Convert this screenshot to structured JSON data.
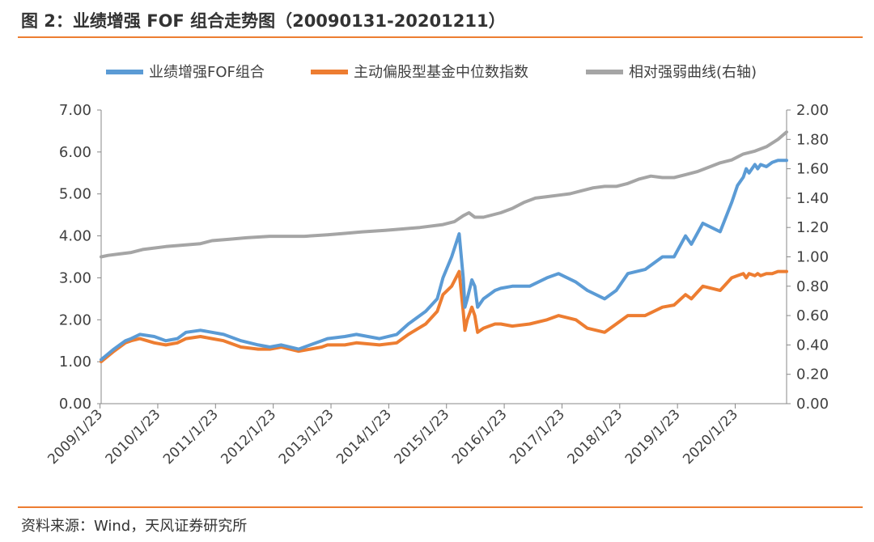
{
  "header": {
    "title": "图 2：业绩增强 FOF 组合走势图（20090131-20201211）"
  },
  "footer": {
    "source": "资料来源：Wind，天风证券研究所"
  },
  "colors": {
    "accent": "#ED7D31",
    "series_blue": "#5B9BD5",
    "series_orange": "#ED7D31",
    "series_gray": "#A5A5A5"
  },
  "chart_data": {
    "type": "line",
    "legend_position": "top",
    "grid": false,
    "x_ticks": [
      "2009/1/23",
      "2010/1/23",
      "2011/1/23",
      "2012/1/23",
      "2013/1/23",
      "2014/1/23",
      "2015/1/23",
      "2016/1/23",
      "2017/1/23",
      "2018/1/23",
      "2019/1/23",
      "2020/1/23"
    ],
    "x_range": [
      2009.08,
      2020.95
    ],
    "y_left": {
      "range": [
        0,
        7
      ],
      "ticks": [
        "0.00",
        "1.00",
        "2.00",
        "3.00",
        "4.00",
        "5.00",
        "6.00",
        "7.00"
      ]
    },
    "y_right": {
      "range": [
        0,
        2
      ],
      "ticks": [
        "0.00",
        "0.20",
        "0.40",
        "0.60",
        "0.80",
        "1.00",
        "1.20",
        "1.40",
        "1.60",
        "1.80",
        "2.00"
      ]
    },
    "series": [
      {
        "name": "业绩增强FOF组合",
        "axis": "left",
        "color": "#5B9BD5",
        "x": [
          2009.08,
          2009.3,
          2009.5,
          2009.6,
          2009.75,
          2010.0,
          2010.2,
          2010.4,
          2010.55,
          2010.8,
          2011.0,
          2011.2,
          2011.5,
          2011.8,
          2012.0,
          2012.2,
          2012.5,
          2012.7,
          2012.9,
          2013.0,
          2013.3,
          2013.5,
          2013.9,
          2014.2,
          2014.4,
          2014.7,
          2014.9,
          2015.0,
          2015.15,
          2015.28,
          2015.35,
          2015.38,
          2015.42,
          2015.5,
          2015.55,
          2015.6,
          2015.7,
          2015.8,
          2015.9,
          2016.0,
          2016.2,
          2016.5,
          2016.8,
          2017.0,
          2017.3,
          2017.5,
          2017.8,
          2018.0,
          2018.2,
          2018.5,
          2018.8,
          2019.0,
          2019.2,
          2019.3,
          2019.5,
          2019.8,
          2020.0,
          2020.1,
          2020.2,
          2020.25,
          2020.3,
          2020.4,
          2020.45,
          2020.5,
          2020.6,
          2020.7,
          2020.8,
          2020.95
        ],
        "values": [
          1.05,
          1.3,
          1.5,
          1.55,
          1.65,
          1.6,
          1.5,
          1.55,
          1.7,
          1.75,
          1.7,
          1.65,
          1.5,
          1.4,
          1.35,
          1.4,
          1.3,
          1.4,
          1.5,
          1.55,
          1.6,
          1.65,
          1.55,
          1.65,
          1.9,
          2.2,
          2.5,
          3.0,
          3.5,
          4.05,
          3.0,
          2.3,
          2.5,
          2.95,
          2.8,
          2.3,
          2.5,
          2.6,
          2.7,
          2.75,
          2.8,
          2.8,
          3.0,
          3.1,
          2.9,
          2.7,
          2.5,
          2.7,
          3.1,
          3.2,
          3.5,
          3.5,
          4.0,
          3.8,
          4.3,
          4.1,
          4.8,
          5.2,
          5.4,
          5.6,
          5.5,
          5.7,
          5.6,
          5.7,
          5.65,
          5.75,
          5.8,
          5.8
        ]
      },
      {
        "name": "主动偏股型基金中位数指数",
        "axis": "left",
        "color": "#ED7D31",
        "x": [
          2009.08,
          2009.3,
          2009.5,
          2009.6,
          2009.75,
          2010.0,
          2010.2,
          2010.4,
          2010.55,
          2010.8,
          2011.0,
          2011.2,
          2011.5,
          2011.8,
          2012.0,
          2012.2,
          2012.5,
          2012.7,
          2012.9,
          2013.0,
          2013.3,
          2013.5,
          2013.9,
          2014.2,
          2014.4,
          2014.7,
          2014.9,
          2015.0,
          2015.15,
          2015.28,
          2015.35,
          2015.38,
          2015.42,
          2015.5,
          2015.55,
          2015.6,
          2015.7,
          2015.8,
          2015.9,
          2016.0,
          2016.2,
          2016.5,
          2016.8,
          2017.0,
          2017.3,
          2017.5,
          2017.8,
          2018.0,
          2018.2,
          2018.5,
          2018.8,
          2019.0,
          2019.2,
          2019.3,
          2019.5,
          2019.8,
          2020.0,
          2020.1,
          2020.2,
          2020.25,
          2020.3,
          2020.4,
          2020.45,
          2020.5,
          2020.6,
          2020.7,
          2020.8,
          2020.95
        ],
        "values": [
          1.0,
          1.25,
          1.45,
          1.5,
          1.55,
          1.45,
          1.4,
          1.45,
          1.55,
          1.6,
          1.55,
          1.5,
          1.35,
          1.3,
          1.3,
          1.35,
          1.25,
          1.3,
          1.35,
          1.4,
          1.4,
          1.45,
          1.4,
          1.45,
          1.65,
          1.9,
          2.2,
          2.6,
          2.8,
          3.15,
          2.2,
          1.75,
          2.0,
          2.3,
          2.1,
          1.7,
          1.8,
          1.85,
          1.9,
          1.9,
          1.85,
          1.9,
          2.0,
          2.1,
          2.0,
          1.8,
          1.7,
          1.9,
          2.1,
          2.1,
          2.3,
          2.35,
          2.6,
          2.5,
          2.8,
          2.7,
          3.0,
          3.05,
          3.1,
          3.0,
          3.1,
          3.05,
          3.1,
          3.05,
          3.1,
          3.1,
          3.15,
          3.15
        ]
      },
      {
        "name": "相对强弱曲线(右轴)",
        "axis": "right",
        "color": "#A5A5A5",
        "x": [
          2009.08,
          2009.2,
          2009.4,
          2009.6,
          2009.8,
          2010.0,
          2010.2,
          2010.5,
          2010.8,
          2011.0,
          2011.3,
          2011.6,
          2012.0,
          2012.3,
          2012.6,
          2013.0,
          2013.3,
          2013.6,
          2014.0,
          2014.3,
          2014.6,
          2015.0,
          2015.2,
          2015.35,
          2015.45,
          2015.55,
          2015.7,
          2016.0,
          2016.2,
          2016.4,
          2016.6,
          2016.8,
          2017.0,
          2017.2,
          2017.4,
          2017.6,
          2017.8,
          2018.0,
          2018.2,
          2018.4,
          2018.6,
          2018.8,
          2019.0,
          2019.2,
          2019.4,
          2019.6,
          2019.8,
          2020.0,
          2020.2,
          2020.4,
          2020.6,
          2020.8,
          2020.95
        ],
        "values": [
          1.0,
          1.01,
          1.02,
          1.03,
          1.05,
          1.06,
          1.07,
          1.08,
          1.09,
          1.11,
          1.12,
          1.13,
          1.14,
          1.14,
          1.14,
          1.15,
          1.16,
          1.17,
          1.18,
          1.19,
          1.2,
          1.22,
          1.24,
          1.28,
          1.3,
          1.27,
          1.27,
          1.3,
          1.33,
          1.37,
          1.4,
          1.41,
          1.42,
          1.43,
          1.45,
          1.47,
          1.48,
          1.48,
          1.5,
          1.53,
          1.55,
          1.54,
          1.54,
          1.56,
          1.58,
          1.61,
          1.64,
          1.66,
          1.7,
          1.72,
          1.75,
          1.8,
          1.85
        ]
      }
    ]
  }
}
